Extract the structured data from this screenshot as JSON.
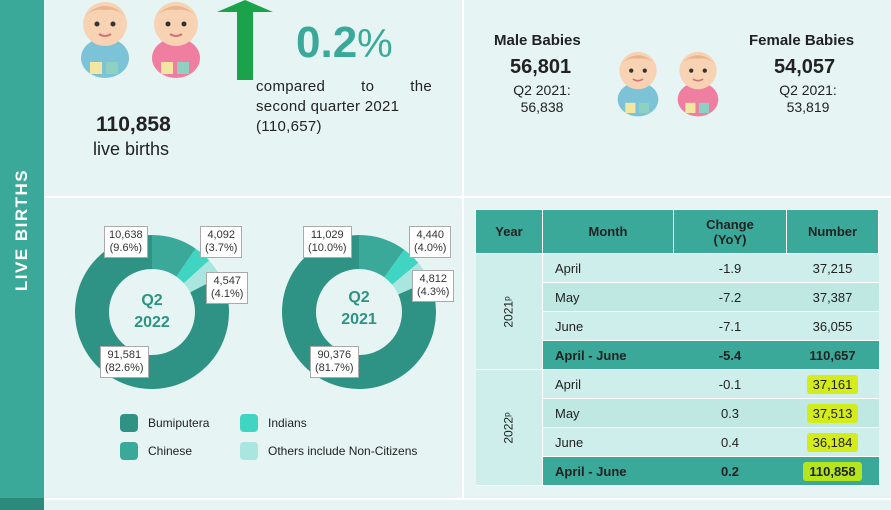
{
  "sidebar": {
    "label": "LIVE BIRTHS"
  },
  "summary": {
    "total_births": "110,858",
    "total_label": "live births",
    "change_value": "0.2",
    "change_unit": "%",
    "compared_line1": [
      "compared",
      "to",
      "the"
    ],
    "compared_line2": "second quarter 2021",
    "compared_line3": "(110,657)"
  },
  "gender": {
    "male_title": "Male Babies",
    "male_number": "56,801",
    "male_prev_label": "Q2 2021:",
    "male_prev_value": "56,838",
    "female_title": "Female Babies",
    "female_number": "54,057",
    "female_prev_label": "Q2 2021:",
    "female_prev_value": "53,819"
  },
  "donut_2022": {
    "quarter": "Q2",
    "year": "2022",
    "bumiputera": {
      "value": "91,581",
      "pct": "(82.6%)",
      "num": 82.6
    },
    "chinese": {
      "value": "10,638",
      "pct": "(9.6%)",
      "num": 9.6
    },
    "indians": {
      "value": "4,092",
      "pct": "(3.7%)",
      "num": 3.7
    },
    "others": {
      "value": "4,547",
      "pct": "(4.1%)",
      "num": 4.1
    }
  },
  "donut_2021": {
    "quarter": "Q2",
    "year": "2021",
    "bumiputera": {
      "value": "90,376",
      "pct": "(81.7%)",
      "num": 81.7
    },
    "chinese": {
      "value": "11,029",
      "pct": "(10.0%)",
      "num": 10.0
    },
    "indians": {
      "value": "4,440",
      "pct": "(4.0%)",
      "num": 4.0
    },
    "others": {
      "value": "4,812",
      "pct": "(4.3%)",
      "num": 4.3
    }
  },
  "legend": {
    "bumiputera": "Bumiputera",
    "indians": "Indians",
    "chinese": "Chinese",
    "others": "Others include Non-Citizens"
  },
  "colors": {
    "bumiputera": "#2e9384",
    "chinese": "#3aa99a",
    "indians": "#40d4c3",
    "others": "#a8e6df"
  },
  "table": {
    "headers": {
      "year": "Year",
      "month": "Month",
      "change_line1": "Change",
      "change_line2": "(YoY)",
      "number": "Number"
    },
    "year_2021": "2021ᵖ",
    "year_2022": "2022ᵖ",
    "rows_2021": [
      {
        "month": "April",
        "change": "-1.9",
        "number": "37,215"
      },
      {
        "month": "May",
        "change": "-7.2",
        "number": "37,387"
      },
      {
        "month": "June",
        "change": "-7.1",
        "number": "36,055"
      }
    ],
    "total_2021": {
      "month": "April - June",
      "change": "-5.4",
      "number": "110,657"
    },
    "rows_2022": [
      {
        "month": "April",
        "change": "-0.1",
        "number": "37,161"
      },
      {
        "month": "May",
        "change": "0.3",
        "number": "37,513"
      },
      {
        "month": "June",
        "change": "0.4",
        "number": "36,184"
      }
    ],
    "total_2022": {
      "month": "April - June",
      "change": "0.2",
      "number": "110,858"
    }
  }
}
